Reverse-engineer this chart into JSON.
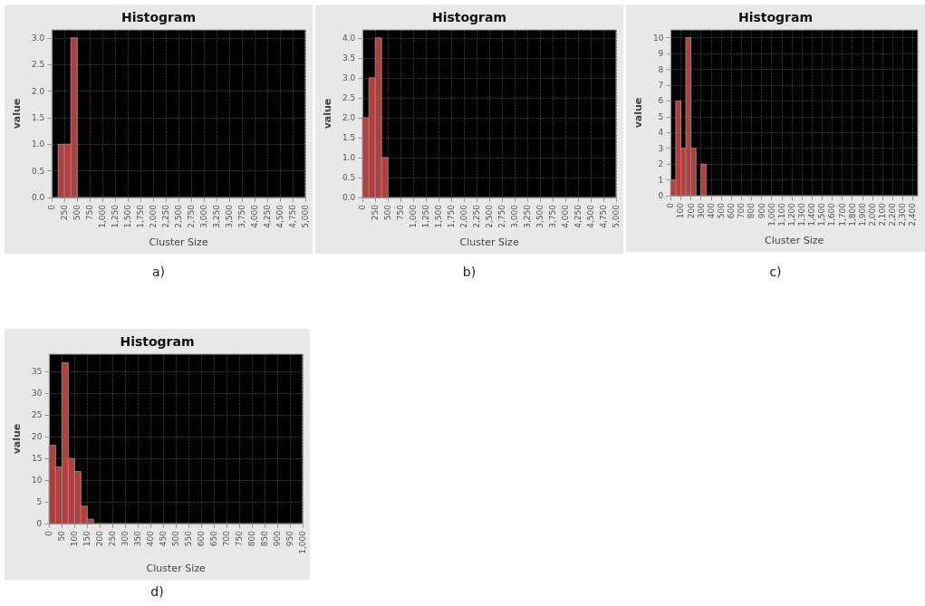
{
  "chart_data": [
    {
      "type": "histogram",
      "title": "Histogram",
      "xlabel": "Cluster Size",
      "ylabel": "value",
      "annotations": [
        "a)"
      ],
      "color": "#b83c3c",
      "grid": true,
      "bins": [
        125,
        250,
        375,
        500
      ],
      "values": [
        1,
        1,
        3
      ],
      "xlim": [
        0,
        5000
      ],
      "xticks": [
        0,
        250,
        500,
        750,
        {
          "value": 1000,
          "label": "1,000"
        },
        {
          "value": 1250,
          "label": "1,250"
        },
        {
          "value": 1500,
          "label": "1,500"
        },
        {
          "value": 1750,
          "label": "1,750"
        },
        {
          "value": 2000,
          "label": "2,000"
        },
        {
          "value": 2250,
          "label": "2,250"
        },
        {
          "value": 2500,
          "label": "2,500"
        },
        {
          "value": 2750,
          "label": "2,750"
        },
        {
          "value": 3000,
          "label": "3,000"
        },
        {
          "value": 3250,
          "label": "3,250"
        },
        {
          "value": 3500,
          "label": "3,500"
        },
        {
          "value": 3750,
          "label": "3,750"
        },
        {
          "value": 4000,
          "label": "4,000"
        },
        {
          "value": 4250,
          "label": "4,250"
        },
        {
          "value": 4500,
          "label": "4,500"
        },
        {
          "value": 4750,
          "label": "4,750"
        },
        {
          "value": 5000,
          "label": "5,000"
        }
      ],
      "ylim": [
        0,
        3.15
      ],
      "yticks": [
        {
          "value": 0,
          "label": "0.0"
        },
        0.5,
        {
          "value": 1,
          "label": "1.0"
        },
        1.5,
        {
          "value": 2,
          "label": "2.0"
        },
        2.5,
        {
          "value": 3,
          "label": "3.0"
        }
      ]
    },
    {
      "type": "histogram",
      "title": "Histogram",
      "xlabel": "Cluster Size",
      "ylabel": "value",
      "annotations": [
        "b)"
      ],
      "color": "#b83c3c",
      "grid": true,
      "bins": [
        0,
        125,
        250,
        375,
        500
      ],
      "values": [
        2,
        3,
        4,
        1
      ],
      "xlim": [
        0,
        5000
      ],
      "xticks": [
        0,
        250,
        500,
        750,
        {
          "value": 1000,
          "label": "1,000"
        },
        {
          "value": 1250,
          "label": "1,250"
        },
        {
          "value": 1500,
          "label": "1,500"
        },
        {
          "value": 1750,
          "label": "1,750"
        },
        {
          "value": 2000,
          "label": "2,000"
        },
        {
          "value": 2250,
          "label": "2,250"
        },
        {
          "value": 2500,
          "label": "2,500"
        },
        {
          "value": 2750,
          "label": "2,750"
        },
        {
          "value": 3000,
          "label": "3,000"
        },
        {
          "value": 3250,
          "label": "3,250"
        },
        {
          "value": 3500,
          "label": "3,500"
        },
        {
          "value": 3750,
          "label": "3,750"
        },
        {
          "value": 4000,
          "label": "4,000"
        },
        {
          "value": 4250,
          "label": "4,250"
        },
        {
          "value": 4500,
          "label": "4,500"
        },
        {
          "value": 4750,
          "label": "4,750"
        },
        {
          "value": 5000,
          "label": "5,000"
        }
      ],
      "ylim": [
        0,
        4.2
      ],
      "yticks": [
        {
          "value": 0,
          "label": "0.0"
        },
        0.5,
        {
          "value": 1,
          "label": "1.0"
        },
        1.5,
        {
          "value": 2,
          "label": "2.0"
        },
        2.5,
        {
          "value": 3,
          "label": "3.0"
        },
        3.5,
        {
          "value": 4,
          "label": "4.0"
        }
      ]
    },
    {
      "type": "histogram",
      "title": "Histogram",
      "xlabel": "Cluster Size",
      "ylabel": "value",
      "annotations": [
        "c)"
      ],
      "color": "#b83c3c",
      "grid": true,
      "bins": [
        0,
        50,
        100,
        150,
        200,
        250,
        300,
        350
      ],
      "values": [
        1,
        6,
        3,
        10,
        3,
        0,
        2
      ],
      "xlim": [
        0,
        2450
      ],
      "xticks": [
        0,
        100,
        200,
        300,
        400,
        500,
        600,
        700,
        800,
        900,
        {
          "value": 1000,
          "label": "1,000"
        },
        {
          "value": 1100,
          "label": "1,100"
        },
        {
          "value": 1200,
          "label": "1,200"
        },
        {
          "value": 1300,
          "label": "1,300"
        },
        {
          "value": 1400,
          "label": "1,400"
        },
        {
          "value": 1500,
          "label": "1,500"
        },
        {
          "value": 1600,
          "label": "1,600"
        },
        {
          "value": 1700,
          "label": "1,700"
        },
        {
          "value": 1800,
          "label": "1,800"
        },
        {
          "value": 1900,
          "label": "1,900"
        },
        {
          "value": 2000,
          "label": "2,000"
        },
        {
          "value": 2100,
          "label": "2,100"
        },
        {
          "value": 2200,
          "label": "2,200"
        },
        {
          "value": 2300,
          "label": "2,300"
        },
        {
          "value": 2400,
          "label": "2,400"
        }
      ],
      "ylim": [
        0,
        10.5
      ],
      "yticks": [
        0,
        1,
        2,
        3,
        4,
        5,
        6,
        7,
        8,
        9,
        10
      ]
    },
    {
      "type": "histogram",
      "title": "Histogram",
      "xlabel": "Cluster Size",
      "ylabel": "value",
      "annotations": [
        "d)"
      ],
      "color": "#b83c3c",
      "grid": true,
      "bins": [
        0,
        25,
        50,
        75,
        100,
        125,
        150,
        175
      ],
      "values": [
        18,
        13,
        37,
        15,
        12,
        4,
        1
      ],
      "xlim": [
        0,
        1000
      ],
      "xticks": [
        0,
        50,
        100,
        150,
        200,
        250,
        300,
        350,
        400,
        450,
        500,
        550,
        600,
        650,
        700,
        750,
        800,
        850,
        900,
        950,
        {
          "value": 1000,
          "label": "1,000"
        }
      ],
      "ylim": [
        0,
        39
      ],
      "yticks": [
        0,
        5,
        10,
        15,
        20,
        25,
        30,
        35
      ]
    }
  ]
}
